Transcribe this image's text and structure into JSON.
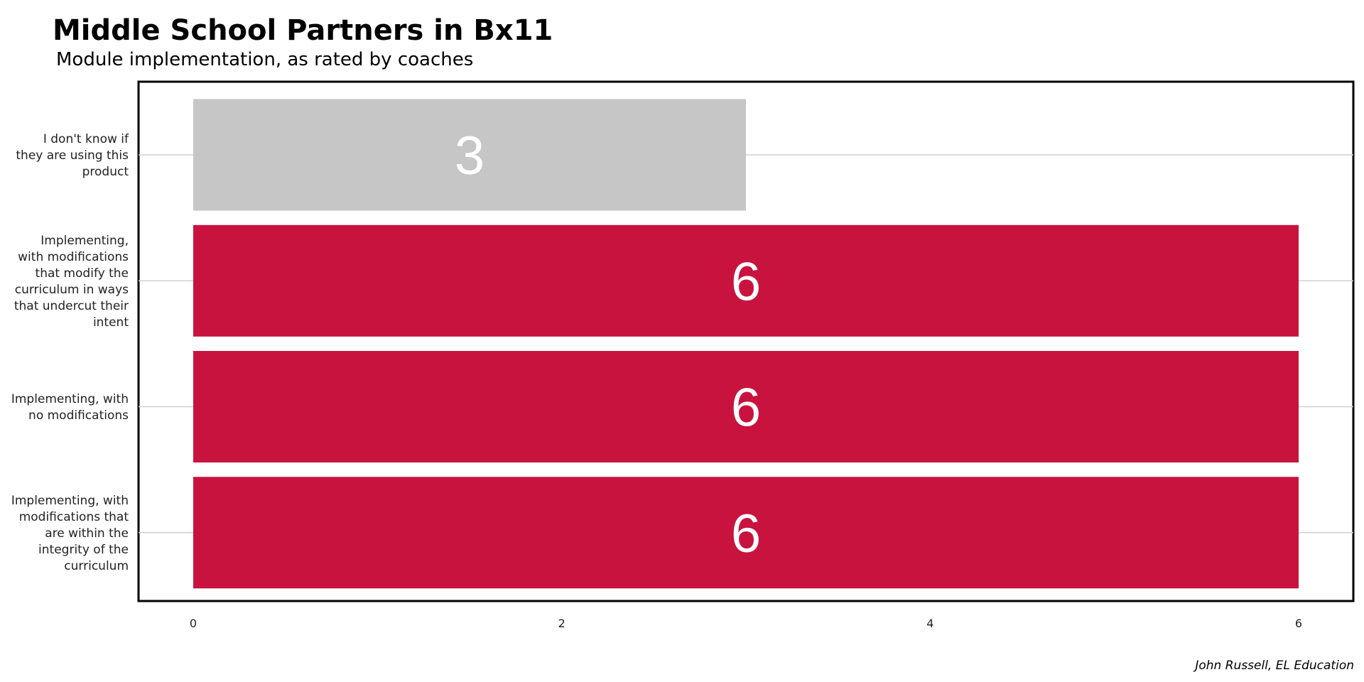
{
  "chart_data": {
    "type": "bar",
    "orientation": "horizontal",
    "title": "Middle School Partners in Bx11",
    "subtitle": "Module implementation, as rated by coaches",
    "caption": "John Russell, EL Education",
    "categories": [
      [
        "I don't know if",
        "they are using this",
        "product"
      ],
      [
        "Implementing,",
        "with modifications",
        "that modify the",
        "curriculum in ways",
        "that undercut their",
        "intent"
      ],
      [
        "Implementing, with",
        "no modifications"
      ],
      [
        "Implementing, with",
        "modifications that",
        "are within the",
        "integrity of the",
        "curriculum"
      ]
    ],
    "values": [
      3,
      6,
      6,
      6
    ],
    "bar_labels": [
      "3",
      "6",
      "6",
      "6"
    ],
    "bar_colors": [
      "#c6c6c6",
      "#c8133f",
      "#c8133f",
      "#c8133f"
    ],
    "xlim": [
      -0.3,
      6.3
    ],
    "xticks": [
      0,
      2,
      4,
      6
    ],
    "xtick_labels": [
      "0",
      "2",
      "4",
      "6"
    ],
    "grid": "horizontal-major",
    "legend": "none"
  }
}
